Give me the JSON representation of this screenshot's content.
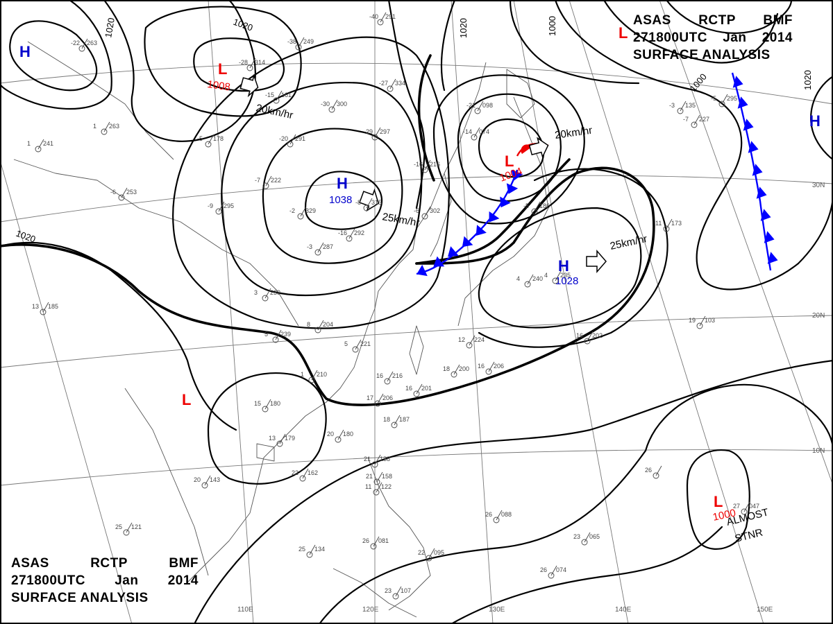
{
  "header": {
    "line1": [
      "ASAS",
      "RCTP",
      "BMF"
    ],
    "line2": [
      "271800UTC",
      "Jan",
      "2014"
    ],
    "line3": "SURFACE ANALYSIS"
  },
  "longitude_labels": [
    "110E",
    "120E",
    "130E",
    "140E",
    "150E"
  ],
  "latitude_labels": [
    "30N",
    "20N",
    "10N"
  ],
  "isobar_labels": [
    "1020",
    "1020",
    "1020",
    "1000",
    "1000",
    "1020",
    "1020"
  ],
  "pressure_systems": [
    {
      "symbol": "H",
      "value": ""
    },
    {
      "symbol": "L",
      "value": "1008"
    },
    {
      "symbol": "H",
      "value": "1038"
    },
    {
      "symbol": "L",
      "value": "1004"
    },
    {
      "symbol": "H",
      "value": "1028"
    },
    {
      "symbol": "L",
      "value": ""
    },
    {
      "symbol": "L",
      "value": "1000"
    },
    {
      "symbol": "L",
      "value": ""
    },
    {
      "symbol": "H",
      "value": ""
    }
  ],
  "movements": [
    "20km/hr",
    "25km/hr",
    "20km/hr",
    "25km/hr"
  ],
  "notes": [
    "ALMOST",
    "STNR"
  ],
  "stations": [
    {
      "t": "-22",
      "p": "263"
    },
    {
      "t": "-28",
      "p": "314"
    },
    {
      "t": "-38",
      "p": "249"
    },
    {
      "t": "-40",
      "p": "291"
    },
    {
      "t": "-15",
      "p": "161"
    },
    {
      "t": "-30",
      "p": "300"
    },
    {
      "t": "-27",
      "p": "334"
    },
    {
      "t": "-21",
      "p": "098"
    },
    {
      "t": "1",
      "p": "263"
    },
    {
      "t": "-5",
      "p": "178"
    },
    {
      "t": "-20",
      "p": "291"
    },
    {
      "t": "-29",
      "p": "297"
    },
    {
      "t": "-14",
      "p": "074"
    },
    {
      "t": "1",
      "p": "241"
    },
    {
      "t": "-7",
      "p": "222"
    },
    {
      "t": "-16",
      "p": "216"
    },
    {
      "t": "-6",
      "p": "253"
    },
    {
      "t": "-9",
      "p": "295"
    },
    {
      "t": "-2",
      "p": "329"
    },
    {
      "t": "-8",
      "p": "315"
    },
    {
      "t": "-6",
      "p": "302"
    },
    {
      "t": "-5",
      "p": "186"
    },
    {
      "t": "-16",
      "p": "292"
    },
    {
      "t": "-3",
      "p": "287"
    },
    {
      "t": "3",
      "p": "239"
    },
    {
      "t": "4",
      "p": "240"
    },
    {
      "t": "4",
      "p": "235"
    },
    {
      "t": "11",
      "p": "173"
    },
    {
      "t": "13",
      "p": "185"
    },
    {
      "t": "5",
      "p": "239"
    },
    {
      "t": "8",
      "p": "204"
    },
    {
      "t": "5",
      "p": "221"
    },
    {
      "t": "12",
      "p": "224"
    },
    {
      "t": "16",
      "p": "216"
    },
    {
      "t": "18",
      "p": "200"
    },
    {
      "t": "16",
      "p": "206"
    },
    {
      "t": "19",
      "p": "103"
    },
    {
      "t": "16",
      "p": "202"
    },
    {
      "t": "1",
      "p": "210"
    },
    {
      "t": "15",
      "p": "180"
    },
    {
      "t": "17",
      "p": "206"
    },
    {
      "t": "18",
      "p": "187"
    },
    {
      "t": "16",
      "p": "201"
    },
    {
      "t": "13",
      "p": "179"
    },
    {
      "t": "20",
      "p": "180"
    },
    {
      "t": "21",
      "p": "138"
    },
    {
      "t": "21",
      "p": "158"
    },
    {
      "t": "22",
      "p": "162"
    },
    {
      "t": "20",
      "p": "143"
    },
    {
      "t": "11",
      "p": "122"
    },
    {
      "t": "26",
      "p": "088"
    },
    {
      "t": "25",
      "p": "121"
    },
    {
      "t": "25",
      "p": "134"
    },
    {
      "t": "23",
      "p": "107"
    },
    {
      "t": "26",
      "p": "081"
    },
    {
      "t": "22",
      "p": "095"
    },
    {
      "t": "26",
      "p": "074"
    },
    {
      "t": "23",
      "p": "065"
    },
    {
      "t": "26",
      "p": ""
    },
    {
      "t": "27",
      "p": "047"
    },
    {
      "t": "-7",
      "p": "227"
    },
    {
      "t": "-5",
      "p": "295"
    },
    {
      "t": "-3",
      "p": "135"
    }
  ],
  "colors": {
    "high": "#0000cc",
    "low": "#ee0000",
    "front": "#0000ff",
    "isobar": "#000000"
  }
}
